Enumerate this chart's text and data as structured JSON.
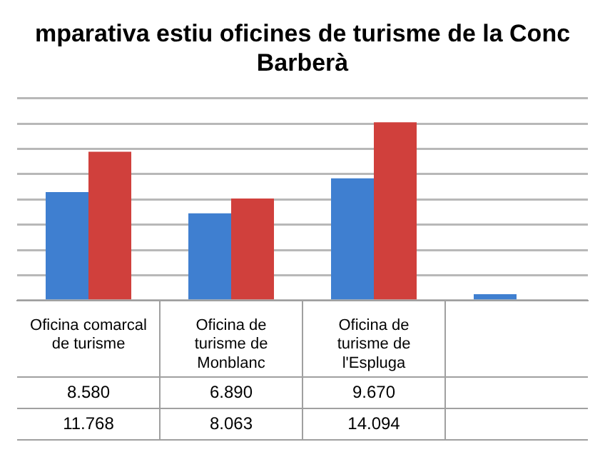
{
  "chart_data": {
    "type": "bar",
    "title": "mparativa estiu oficines de turisme de la Conc\nBarberà",
    "categories": [
      "Oficina comarcal de turisme",
      "Oficina de turisme de Monblanc",
      "Oficina de turisme de l'Espluga",
      null
    ],
    "series": [
      {
        "color": "#3f7fd0",
        "values": [
          8580,
          6890,
          9670,
          500
        ],
        "value_labels": [
          "8.580",
          "6.890",
          "9.670",
          null
        ]
      },
      {
        "color": "#d0403c",
        "values": [
          11768,
          8063,
          14094,
          null
        ],
        "value_labels": [
          "11.768",
          "8.063",
          "14.094",
          null
        ]
      }
    ],
    "ylim": [
      0,
      16000
    ],
    "yticks": [
      {
        "value": 0,
        "label": null
      },
      {
        "value": 2000,
        "label": null
      },
      {
        "value": 4000,
        "label": null
      },
      {
        "value": 6000,
        "label": null
      },
      {
        "value": 8000,
        "label": null
      },
      {
        "value": 10000,
        "label": null
      },
      {
        "value": 12000,
        "label": null
      },
      {
        "value": 14000,
        "label": null
      },
      {
        "value": 16000,
        "label": null
      }
    ],
    "grid": "y",
    "tick_labels": "x",
    "legend": false
  }
}
